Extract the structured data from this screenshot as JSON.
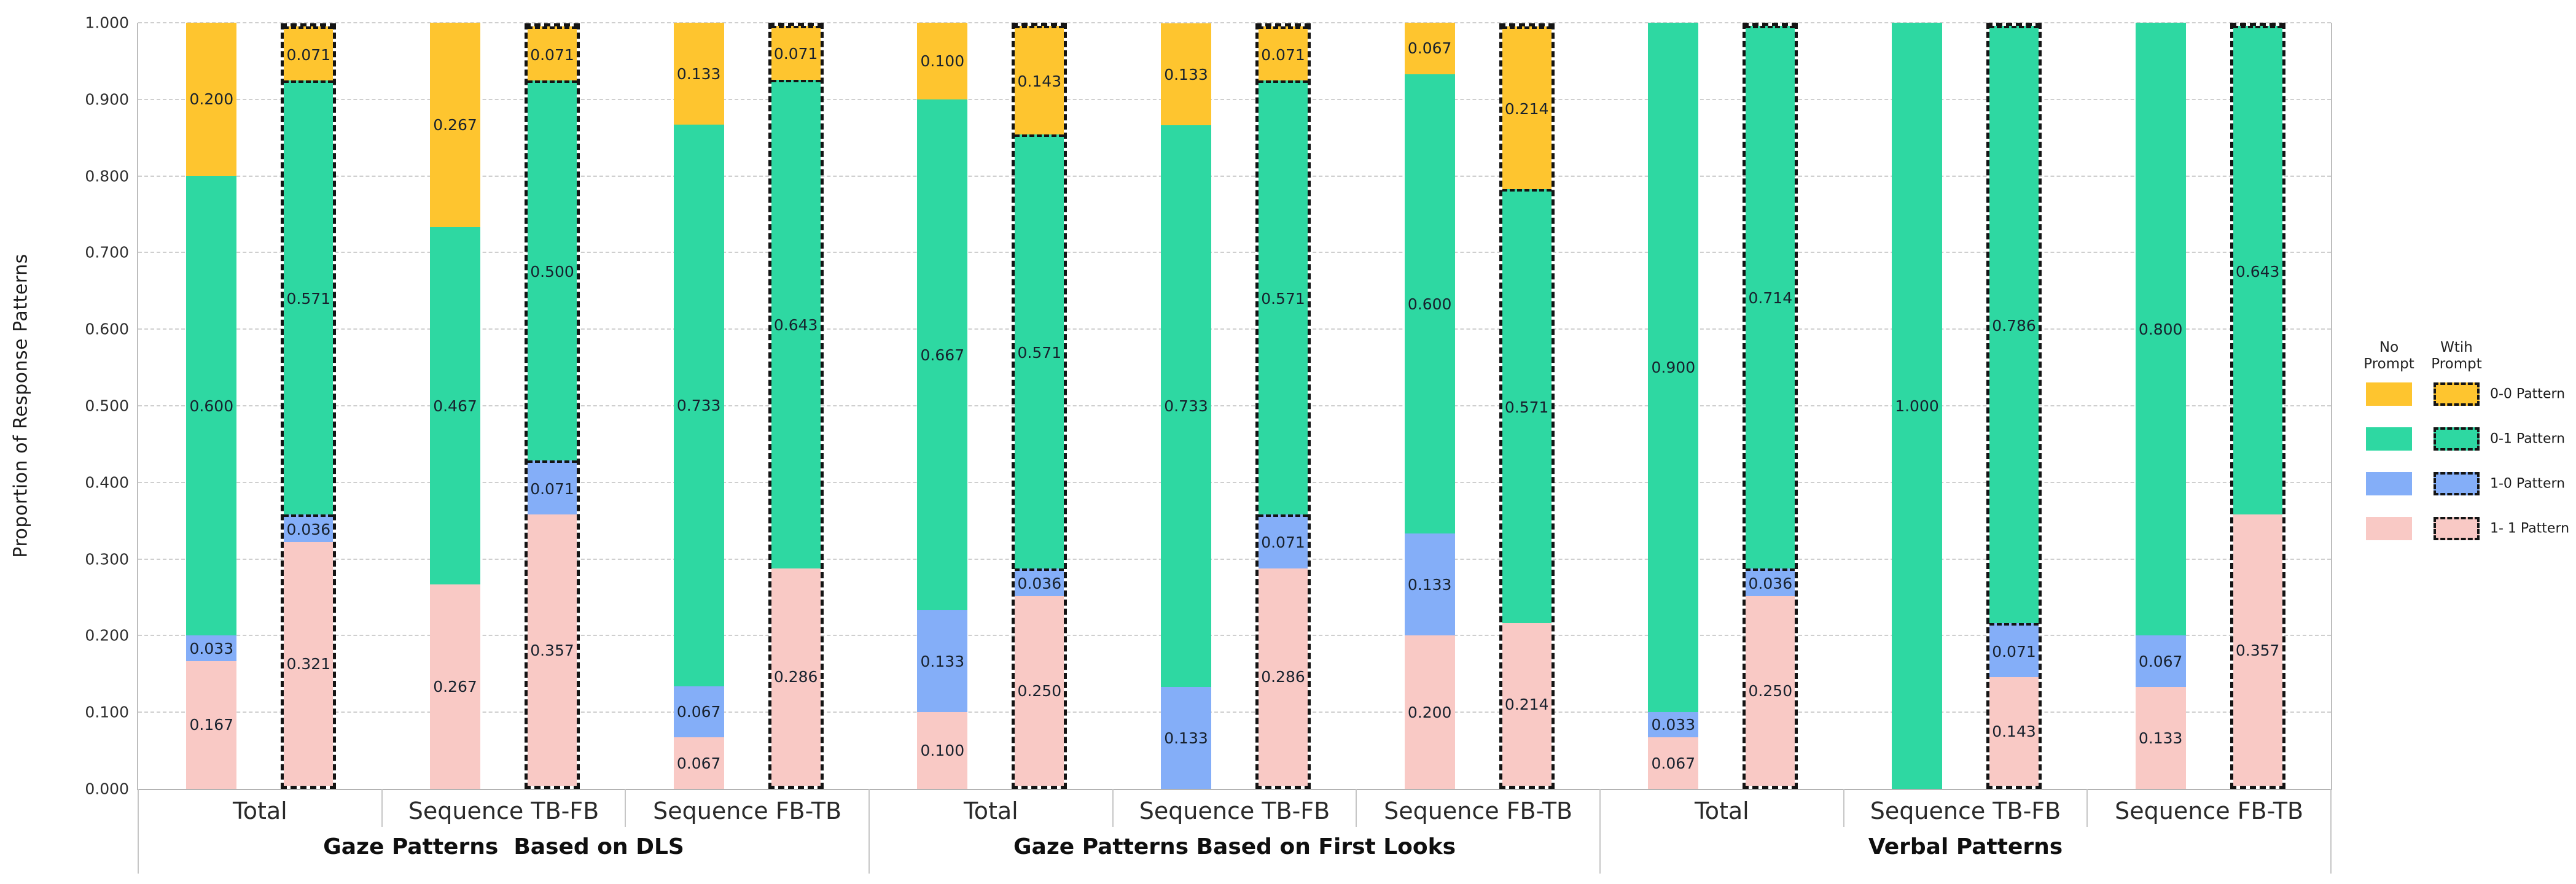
{
  "chart_data": {
    "type": "bar",
    "stacked": true,
    "title": "",
    "xlabel": "",
    "ylabel": "Proportion of Response Patterns",
    "ylim": [
      0.0,
      1.0
    ],
    "ytick_step": 0.1,
    "ytick_labels": [
      "0.000",
      "0.100",
      "0.200",
      "0.300",
      "0.400",
      "0.500",
      "0.600",
      "0.700",
      "0.800",
      "0.900",
      "1.000"
    ],
    "grid": "horizontal-dashed",
    "stack_order_bottom_to_top": [
      "1-1",
      "1-0",
      "0-1",
      "0-0"
    ],
    "colors": {
      "0-0": "#FEC52F",
      "0-1": "#2ED8A2",
      "1-0": "#84AEF8",
      "1-1": "#F9C9C5",
      "dashed_border": "#141414"
    },
    "bar_variants": [
      {
        "key": "no_prompt",
        "style": "solid",
        "label": "No Prompt"
      },
      {
        "key": "with_prompt",
        "style": "dashed",
        "label": "Wtih Prompt"
      }
    ],
    "legend": {
      "column_headers": [
        "No\nPrompt",
        "Wtih\nPrompt"
      ],
      "items": [
        {
          "label": "0-0 Pattern",
          "pattern": "0-0"
        },
        {
          "label": "0-1 Pattern",
          "pattern": "0-1"
        },
        {
          "label": "1-0 Pattern",
          "pattern": "1-0"
        },
        {
          "label": "1- 1 Pattern",
          "pattern": "1-1"
        }
      ]
    },
    "groups": [
      {
        "label": "Gaze Patterns  Based on DLS",
        "categories": [
          {
            "label": "Total",
            "bars": [
              {
                "variant": "no_prompt",
                "style": "solid",
                "segments": [
                  {
                    "pattern": "1-1",
                    "value": 0.167,
                    "label": "0.167"
                  },
                  {
                    "pattern": "1-0",
                    "value": 0.033,
                    "label": "0.033"
                  },
                  {
                    "pattern": "0-1",
                    "value": 0.6,
                    "label": "0.600"
                  },
                  {
                    "pattern": "0-0",
                    "value": 0.2,
                    "label": "0.200"
                  }
                ]
              },
              {
                "variant": "with_prompt",
                "style": "dashed",
                "segments": [
                  {
                    "pattern": "1-1",
                    "value": 0.321,
                    "label": "0.321"
                  },
                  {
                    "pattern": "1-0",
                    "value": 0.036,
                    "label": "0.036"
                  },
                  {
                    "pattern": "0-1",
                    "value": 0.571,
                    "label": "0.571"
                  },
                  {
                    "pattern": "0-0",
                    "value": 0.071,
                    "label": "0.071"
                  }
                ]
              }
            ]
          },
          {
            "label": "Sequence TB-FB",
            "bars": [
              {
                "variant": "no_prompt",
                "style": "solid",
                "segments": [
                  {
                    "pattern": "1-1",
                    "value": 0.267,
                    "label": "0.267"
                  },
                  {
                    "pattern": "0-1",
                    "value": 0.467,
                    "label": "0.467"
                  },
                  {
                    "pattern": "0-0",
                    "value": 0.267,
                    "label": "0.267"
                  }
                ]
              },
              {
                "variant": "with_prompt",
                "style": "dashed",
                "segments": [
                  {
                    "pattern": "1-1",
                    "value": 0.357,
                    "label": "0.357"
                  },
                  {
                    "pattern": "1-0",
                    "value": 0.071,
                    "label": "0.071"
                  },
                  {
                    "pattern": "0-1",
                    "value": 0.5,
                    "label": "0.500"
                  },
                  {
                    "pattern": "0-0",
                    "value": 0.071,
                    "label": "0.071"
                  }
                ]
              }
            ]
          },
          {
            "label": "Sequence FB-TB",
            "bars": [
              {
                "variant": "no_prompt",
                "style": "solid",
                "segments": [
                  {
                    "pattern": "1-1",
                    "value": 0.067,
                    "label": "0.067"
                  },
                  {
                    "pattern": "1-0",
                    "value": 0.067,
                    "label": "0.067"
                  },
                  {
                    "pattern": "0-1",
                    "value": 0.733,
                    "label": "0.733"
                  },
                  {
                    "pattern": "0-0",
                    "value": 0.133,
                    "label": "0.133"
                  }
                ]
              },
              {
                "variant": "with_prompt",
                "style": "dashed",
                "segments": [
                  {
                    "pattern": "1-1",
                    "value": 0.286,
                    "label": "0.286"
                  },
                  {
                    "pattern": "0-1",
                    "value": 0.643,
                    "label": "0.643"
                  },
                  {
                    "pattern": "0-0",
                    "value": 0.071,
                    "label": "0.071"
                  }
                ]
              }
            ]
          }
        ]
      },
      {
        "label": "Gaze Patterns Based on First Looks",
        "categories": [
          {
            "label": "Total",
            "bars": [
              {
                "variant": "no_prompt",
                "style": "solid",
                "segments": [
                  {
                    "pattern": "1-1",
                    "value": 0.1,
                    "label": "0.100"
                  },
                  {
                    "pattern": "1-0",
                    "value": 0.133,
                    "label": "0.133"
                  },
                  {
                    "pattern": "0-1",
                    "value": 0.667,
                    "label": "0.667"
                  },
                  {
                    "pattern": "0-0",
                    "value": 0.1,
                    "label": "0.100"
                  }
                ]
              },
              {
                "variant": "with_prompt",
                "style": "dashed",
                "segments": [
                  {
                    "pattern": "1-1",
                    "value": 0.25,
                    "label": "0.250"
                  },
                  {
                    "pattern": "1-0",
                    "value": 0.036,
                    "label": "0.036"
                  },
                  {
                    "pattern": "0-1",
                    "value": 0.571,
                    "label": "0.571"
                  },
                  {
                    "pattern": "0-0",
                    "value": 0.143,
                    "label": "0.143"
                  }
                ]
              }
            ]
          },
          {
            "label": "Sequence TB-FB",
            "bars": [
              {
                "variant": "no_prompt",
                "style": "solid",
                "segments": [
                  {
                    "pattern": "1-0",
                    "value": 0.133,
                    "label": "0.133"
                  },
                  {
                    "pattern": "0-1",
                    "value": 0.733,
                    "label": "0.733"
                  },
                  {
                    "pattern": "0-0",
                    "value": 0.133,
                    "label": "0.133"
                  }
                ]
              },
              {
                "variant": "with_prompt",
                "style": "dashed",
                "segments": [
                  {
                    "pattern": "1-1",
                    "value": 0.286,
                    "label": "0.286"
                  },
                  {
                    "pattern": "1-0",
                    "value": 0.071,
                    "label": "0.071"
                  },
                  {
                    "pattern": "0-1",
                    "value": 0.571,
                    "label": "0.571"
                  },
                  {
                    "pattern": "0-0",
                    "value": 0.071,
                    "label": "0.071"
                  }
                ]
              }
            ]
          },
          {
            "label": "Sequence FB-TB",
            "bars": [
              {
                "variant": "no_prompt",
                "style": "solid",
                "segments": [
                  {
                    "pattern": "1-1",
                    "value": 0.2,
                    "label": "0.200"
                  },
                  {
                    "pattern": "1-0",
                    "value": 0.133,
                    "label": "0.133"
                  },
                  {
                    "pattern": "0-1",
                    "value": 0.6,
                    "label": "0.600"
                  },
                  {
                    "pattern": "0-0",
                    "value": 0.067,
                    "label": "0.067"
                  }
                ]
              },
              {
                "variant": "with_prompt",
                "style": "dashed",
                "segments": [
                  {
                    "pattern": "1-1",
                    "value": 0.214,
                    "label": "0.214"
                  },
                  {
                    "pattern": "0-1",
                    "value": 0.571,
                    "label": "0.571"
                  },
                  {
                    "pattern": "0-0",
                    "value": 0.214,
                    "label": "0.214"
                  }
                ]
              }
            ]
          }
        ]
      },
      {
        "label": "Verbal Patterns",
        "categories": [
          {
            "label": "Total",
            "bars": [
              {
                "variant": "no_prompt",
                "style": "solid",
                "segments": [
                  {
                    "pattern": "1-1",
                    "value": 0.067,
                    "label": "0.067"
                  },
                  {
                    "pattern": "1-0",
                    "value": 0.033,
                    "label": "0.033"
                  },
                  {
                    "pattern": "0-1",
                    "value": 0.9,
                    "label": "0.900"
                  }
                ]
              },
              {
                "variant": "with_prompt",
                "style": "dashed",
                "segments": [
                  {
                    "pattern": "1-1",
                    "value": 0.25,
                    "label": "0.250"
                  },
                  {
                    "pattern": "1-0",
                    "value": 0.036,
                    "label": "0.036"
                  },
                  {
                    "pattern": "0-1",
                    "value": 0.714,
                    "label": "0.714"
                  }
                ]
              }
            ]
          },
          {
            "label": "Sequence TB-FB",
            "bars": [
              {
                "variant": "no_prompt",
                "style": "solid",
                "segments": [
                  {
                    "pattern": "0-1",
                    "value": 1.0,
                    "label": "1.000"
                  }
                ]
              },
              {
                "variant": "with_prompt",
                "style": "dashed",
                "segments": [
                  {
                    "pattern": "1-1",
                    "value": 0.143,
                    "label": "0.143"
                  },
                  {
                    "pattern": "1-0",
                    "value": 0.071,
                    "label": "0.071"
                  },
                  {
                    "pattern": "0-1",
                    "value": 0.786,
                    "label": "0.786"
                  }
                ]
              }
            ]
          },
          {
            "label": "Sequence FB-TB",
            "bars": [
              {
                "variant": "no_prompt",
                "style": "solid",
                "segments": [
                  {
                    "pattern": "1-1",
                    "value": 0.133,
                    "label": "0.133"
                  },
                  {
                    "pattern": "1-0",
                    "value": 0.067,
                    "label": "0.067"
                  },
                  {
                    "pattern": "0-1",
                    "value": 0.8,
                    "label": "0.800"
                  }
                ]
              },
              {
                "variant": "with_prompt",
                "style": "dashed",
                "segments": [
                  {
                    "pattern": "1-1",
                    "value": 0.357,
                    "label": "0.357"
                  },
                  {
                    "pattern": "0-1",
                    "value": 0.643,
                    "label": "0.643"
                  }
                ]
              }
            ]
          }
        ]
      }
    ]
  }
}
